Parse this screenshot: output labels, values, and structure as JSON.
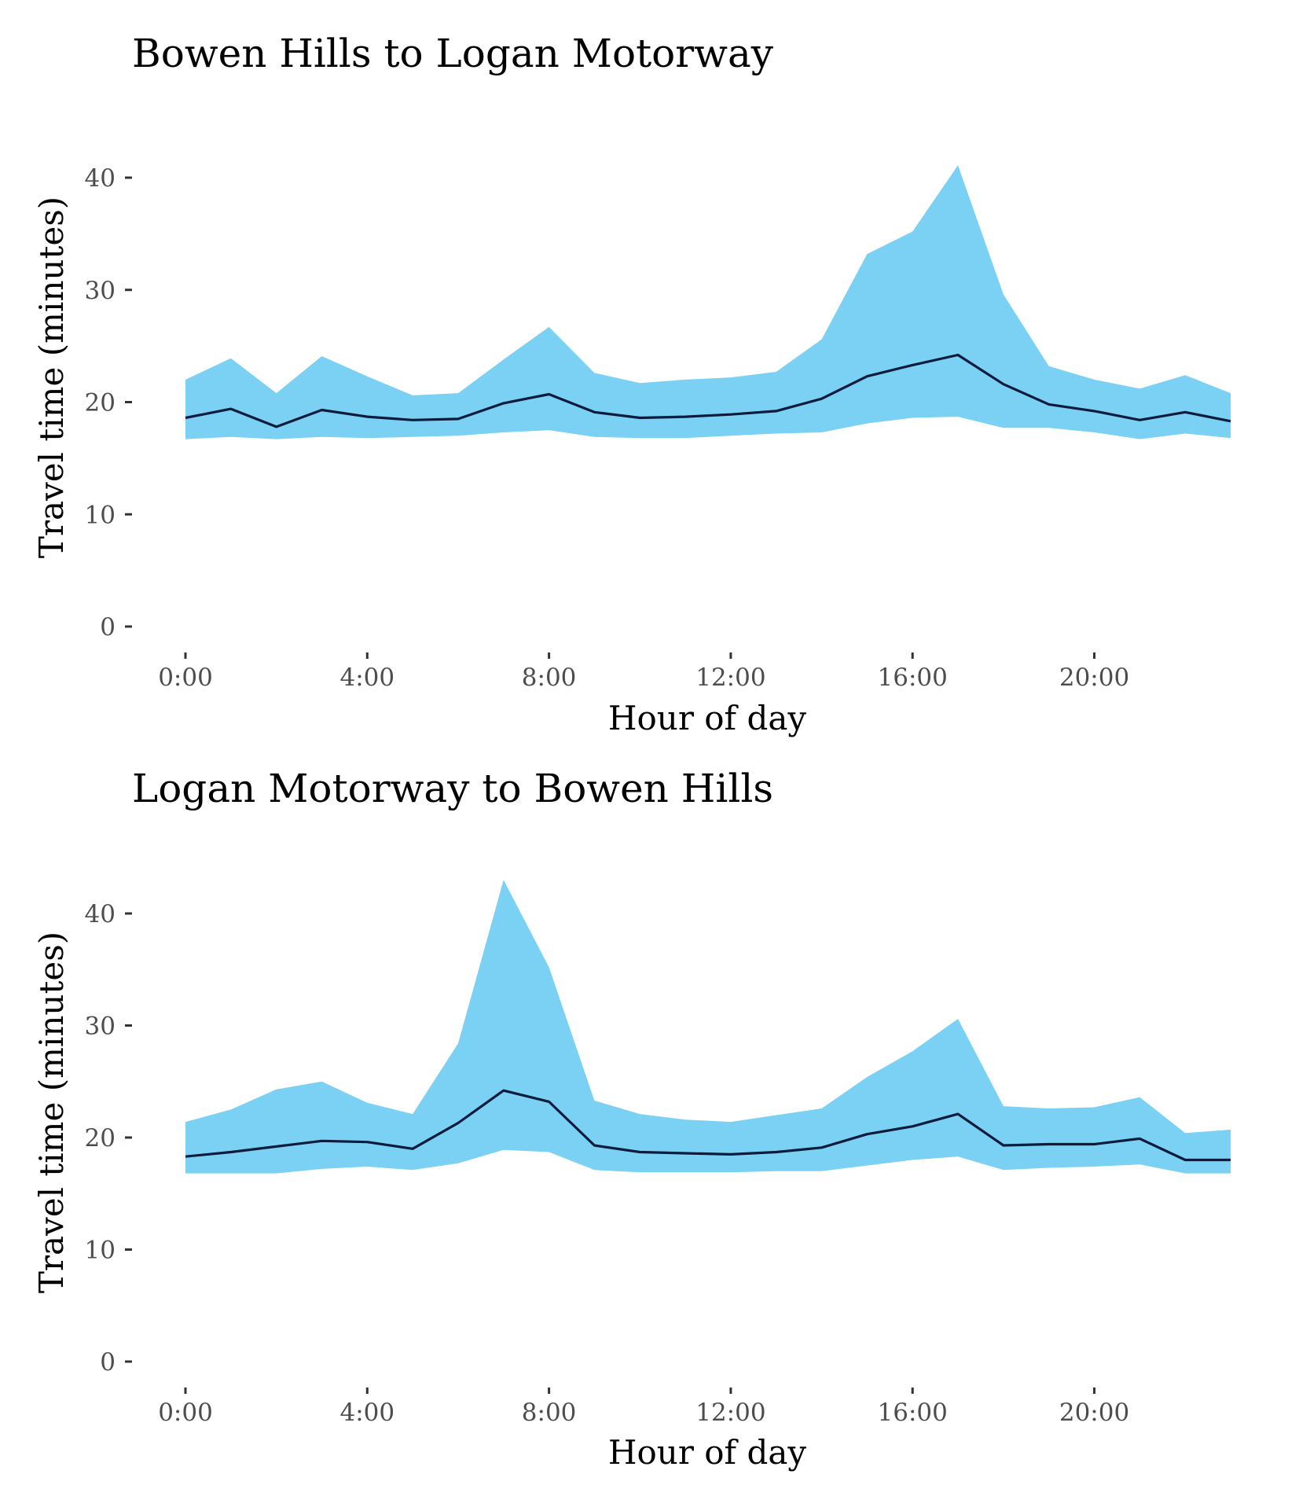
{
  "colors": {
    "band": "#7ad1f3",
    "line": "#0d1b3d",
    "tick_label": "#4d4d4d",
    "tick": "#333333"
  },
  "chart_data": [
    {
      "type": "area",
      "title": "Bowen Hills to Logan Motorway",
      "xlabel": "Hour of day",
      "ylabel": "Travel time (minutes)",
      "xlim": [
        0,
        23
      ],
      "ylim": [
        0,
        42
      ],
      "x_ticks": [
        0,
        4,
        8,
        12,
        16,
        20
      ],
      "x_tick_labels": [
        "0:00",
        "4:00",
        "8:00",
        "12:00",
        "16:00",
        "20:00"
      ],
      "y_ticks": [
        0,
        10,
        20,
        30,
        40
      ],
      "y_tick_labels": [
        "0",
        "10",
        "20",
        "30",
        "40"
      ],
      "grid": false,
      "x": [
        0,
        1,
        2,
        3,
        4,
        5,
        6,
        7,
        8,
        9,
        10,
        11,
        12,
        13,
        14,
        15,
        16,
        17,
        18,
        19,
        20,
        21,
        22,
        23
      ],
      "series": [
        {
          "kind": "band",
          "lower": [
            16.7,
            16.9,
            16.7,
            16.9,
            16.8,
            16.9,
            17.0,
            17.3,
            17.5,
            16.9,
            16.8,
            16.8,
            17.0,
            17.2,
            17.3,
            18.1,
            18.6,
            18.7,
            17.7,
            17.7,
            17.3,
            16.7,
            17.2,
            16.8
          ],
          "upper": [
            22.0,
            23.9,
            20.8,
            24.1,
            22.3,
            20.6,
            20.8,
            23.8,
            26.7,
            22.6,
            21.7,
            22.0,
            22.2,
            22.7,
            25.6,
            33.2,
            35.2,
            41.1,
            29.6,
            23.2,
            22.0,
            21.2,
            22.4,
            20.8
          ]
        },
        {
          "kind": "line",
          "values": [
            18.6,
            19.4,
            17.8,
            19.3,
            18.7,
            18.4,
            18.5,
            19.9,
            20.7,
            19.1,
            18.6,
            18.7,
            18.9,
            19.2,
            20.3,
            22.3,
            23.3,
            24.2,
            21.6,
            19.8,
            19.2,
            18.4,
            19.1,
            18.3
          ]
        }
      ]
    },
    {
      "type": "area",
      "title": "Logan Motorway to Bowen Hills",
      "xlabel": "Hour of day",
      "ylabel": "Travel time (minutes)",
      "xlim": [
        0,
        23
      ],
      "ylim": [
        0,
        42
      ],
      "x_ticks": [
        0,
        4,
        8,
        12,
        16,
        20
      ],
      "x_tick_labels": [
        "0:00",
        "4:00",
        "8:00",
        "12:00",
        "16:00",
        "20:00"
      ],
      "y_ticks": [
        0,
        10,
        20,
        30,
        40
      ],
      "y_tick_labels": [
        "0",
        "10",
        "20",
        "30",
        "40"
      ],
      "grid": false,
      "x": [
        0,
        1,
        2,
        3,
        4,
        5,
        6,
        7,
        8,
        9,
        10,
        11,
        12,
        13,
        14,
        15,
        16,
        17,
        18,
        19,
        20,
        21,
        22,
        23
      ],
      "series": [
        {
          "kind": "band",
          "lower": [
            16.8,
            16.8,
            16.8,
            17.2,
            17.4,
            17.1,
            17.7,
            18.9,
            18.7,
            17.1,
            16.9,
            16.9,
            16.9,
            17.0,
            17.0,
            17.5,
            18.0,
            18.3,
            17.1,
            17.3,
            17.4,
            17.6,
            16.8,
            16.8
          ],
          "upper": [
            21.4,
            22.5,
            24.3,
            25.0,
            23.1,
            22.1,
            28.4,
            43.0,
            35.2,
            23.3,
            22.1,
            21.6,
            21.4,
            22.0,
            22.6,
            25.4,
            27.7,
            30.6,
            22.8,
            22.6,
            22.7,
            23.6,
            20.4,
            20.7
          ]
        },
        {
          "kind": "line",
          "values": [
            18.3,
            18.7,
            19.2,
            19.7,
            19.6,
            19.0,
            21.3,
            24.2,
            23.2,
            19.3,
            18.7,
            18.6,
            18.5,
            18.7,
            19.1,
            20.3,
            21.0,
            22.1,
            19.3,
            19.4,
            19.4,
            19.9,
            18.0,
            18.0
          ]
        }
      ]
    }
  ]
}
